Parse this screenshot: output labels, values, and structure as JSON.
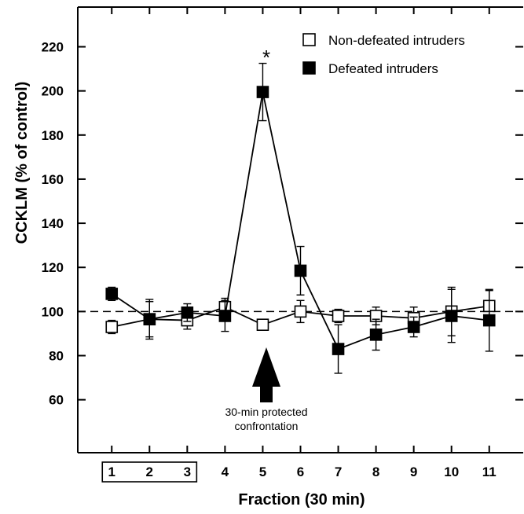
{
  "chart_data": {
    "type": "line",
    "title": "",
    "xlabel": "Fraction (30 min)",
    "ylabel": "CCKLM (% of control)",
    "x": [
      1,
      2,
      3,
      4,
      5,
      6,
      7,
      8,
      9,
      10,
      11
    ],
    "x_tick_labels": [
      "1",
      "2",
      "3",
      "4",
      "5",
      "6",
      "7",
      "8",
      "9",
      "10",
      "11"
    ],
    "y_tick_labels": [
      "60",
      "80",
      "100",
      "120",
      "140",
      "160",
      "180",
      "200",
      "220"
    ],
    "y_ticks": [
      60,
      80,
      100,
      120,
      140,
      160,
      180,
      200,
      220
    ],
    "xlim": [
      0.1,
      11.9
    ],
    "ylim": [
      36,
      238
    ],
    "reference_line": 100,
    "grid": false,
    "legend_position": "top-right",
    "boxed_x_labels": [
      1,
      2,
      3
    ],
    "series": [
      {
        "name": "Non-defeated intruders",
        "marker": "open-square",
        "values": [
          93,
          96.5,
          96,
          102,
          94,
          100,
          98,
          98,
          97,
          100,
          102.5
        ],
        "error": [
          3,
          9,
          4,
          4,
          0,
          5,
          3,
          4,
          5,
          11,
          7
        ]
      },
      {
        "name": "Defeated intruders",
        "marker": "filled-square",
        "values": [
          108,
          96.5,
          99.5,
          98,
          199.5,
          118.5,
          83,
          89.5,
          93,
          98,
          96
        ],
        "error": [
          3,
          8,
          4,
          7,
          13,
          11,
          11,
          7,
          4.5,
          12,
          14
        ]
      }
    ],
    "annotations": [
      {
        "text": "*",
        "x": 5
      },
      {
        "text": "30-min protected",
        "x": 5
      },
      {
        "text": "confrontation",
        "x": 5
      }
    ]
  },
  "colors": {
    "open_marker_fill": "#ffffff",
    "filled_marker_fill": "#000000",
    "line": "#000000"
  }
}
